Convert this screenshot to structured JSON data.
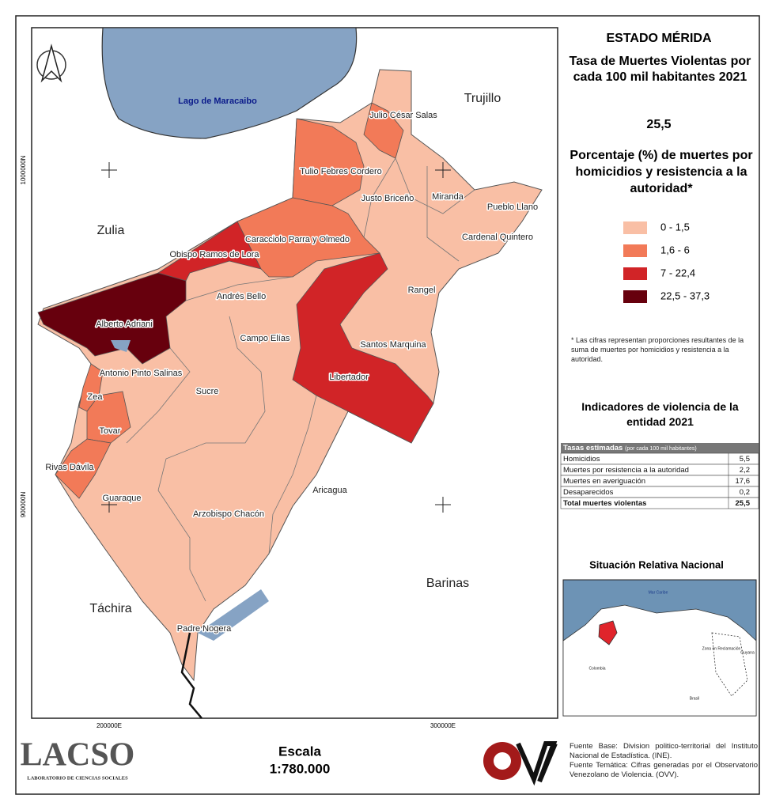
{
  "title": "ESTADO MÉRIDA",
  "subtitle": "Tasa de Muertes Violentas por cada 100 mil habitantes 2021",
  "rate": "25,5",
  "legend_title": "Porcentaje (%) de muertes por homicidios y resistencia a la autoridad*",
  "legend": [
    {
      "label": "0 - 1,5",
      "color": "#f9bfa5"
    },
    {
      "label": "1,6 - 6",
      "color": "#f27a58"
    },
    {
      "label": "7 - 22,4",
      "color": "#d12427"
    },
    {
      "label": "22,5 - 37,3",
      "color": "#67000d"
    }
  ],
  "note": "* Las cifras representan proporciones resultantes de la suma de muertes por homicidios y resistencia a la autoridad.",
  "map": {
    "lake": "Lago de Maracaibo",
    "neighbors": [
      "Trujillo",
      "Zulia",
      "Táchira",
      "Barinas"
    ],
    "grid_y": [
      "1000000N",
      "900000N"
    ],
    "grid_x": [
      "200000E",
      "300000E"
    ],
    "municipalities": [
      {
        "name": "Julio César Salas",
        "class": 1
      },
      {
        "name": "Tulio Febres Cordero",
        "class": 1
      },
      {
        "name": "Justo Briceño",
        "class": 0
      },
      {
        "name": "Miranda",
        "class": 0
      },
      {
        "name": "Pueblo Llano",
        "class": 0
      },
      {
        "name": "Cardenal Quintero",
        "class": 0
      },
      {
        "name": "Caracciolo Parra y Olmedo",
        "class": 1
      },
      {
        "name": "Obispo Ramos de Lora",
        "class": 2
      },
      {
        "name": "Andrés Bello",
        "class": 0
      },
      {
        "name": "Rangel",
        "class": 0
      },
      {
        "name": "Alberto Adriani",
        "class": 3
      },
      {
        "name": "Campo Elías",
        "class": 0
      },
      {
        "name": "Santos Marquina",
        "class": 0
      },
      {
        "name": "Libertador",
        "class": 2
      },
      {
        "name": "Antonio Pinto Salinas",
        "class": 0
      },
      {
        "name": "Sucre",
        "class": 0
      },
      {
        "name": "Zea",
        "class": 1
      },
      {
        "name": "Tovar",
        "class": 1
      },
      {
        "name": "Rivas Dávila",
        "class": 1
      },
      {
        "name": "Guaraque",
        "class": 0
      },
      {
        "name": "Arzobispo Chacón",
        "class": 0
      },
      {
        "name": "Aricagua",
        "class": 0
      },
      {
        "name": "Padre Nogera",
        "class": 0
      }
    ]
  },
  "indicators": {
    "title": "Indicadores de violencia de la entidad 2021",
    "header": "Tasas estimadas",
    "header_note": "(por cada 100 mil habitantes)",
    "rows": [
      [
        "Homicidios",
        "5,5"
      ],
      [
        "Muertes por resistencia a la autoridad",
        "2,2"
      ],
      [
        "Muertes en averiguación",
        "17,6"
      ],
      [
        "Desaparecidos",
        "0,2"
      ]
    ],
    "total": [
      "Total muertes violentas",
      "25,5"
    ]
  },
  "inset": {
    "title": "Situación Relativa Nacional",
    "labels": [
      "Mar Caribe",
      "Colombia",
      "Brasil",
      "Zona en Reclamación",
      "Guyana"
    ]
  },
  "footer": {
    "lacso": "LACSO",
    "lacso_sub": "LABORATORIO DE CIENCIAS SOCIALES",
    "scale_title": "Escala",
    "scale": "1:780.000",
    "sources": [
      "Fuente Base: Division politico-territorial del Instituto Nacional de Estadística. (INE).",
      "Fuente Temática: Cifras generadas por el Observatorio Venezolano de Violencia. (OVV)."
    ]
  }
}
